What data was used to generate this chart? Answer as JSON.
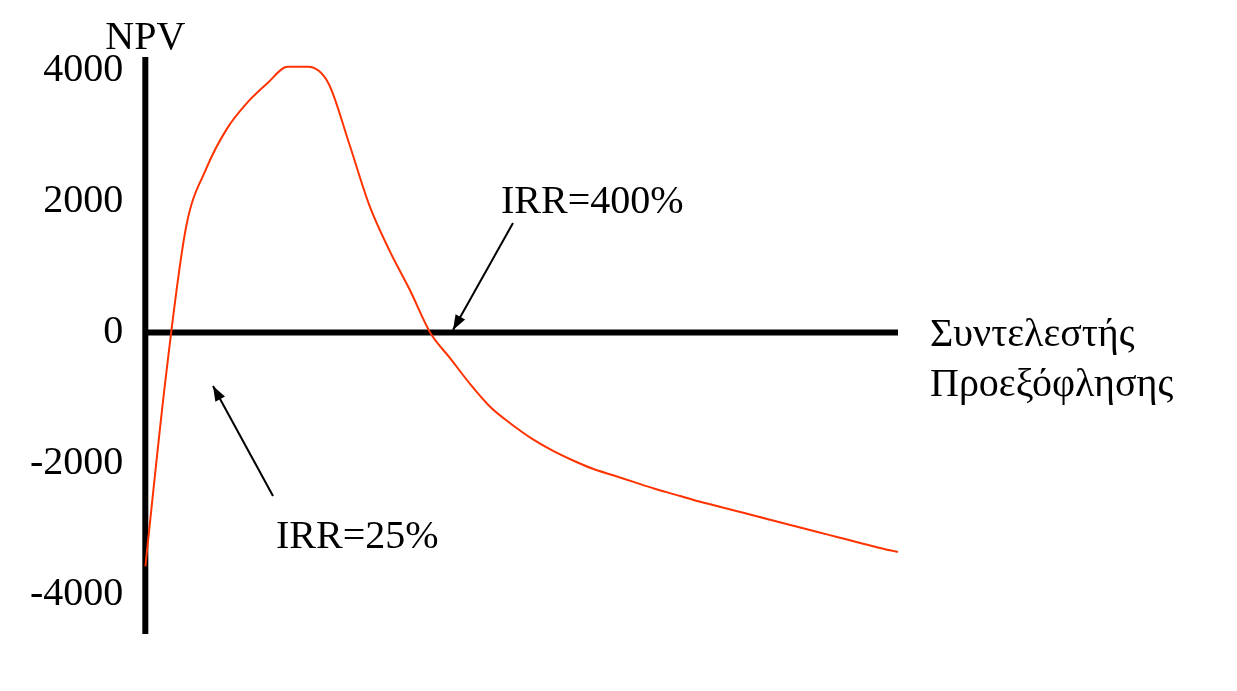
{
  "chart_data": {
    "type": "line",
    "ylabel": "NPV",
    "xlabel": "Συντελεστής Προεξόφλησης",
    "categories": [
      null,
      null,
      null,
      null,
      null,
      null,
      null,
      null,
      null,
      null,
      null,
      null,
      null,
      null,
      null,
      null,
      null,
      null,
      null,
      null,
      null,
      null,
      null,
      null,
      null,
      null,
      null,
      null,
      null,
      null,
      null,
      null,
      null,
      null,
      null,
      null,
      null,
      null
    ],
    "series": [
      {
        "color": "#ff3300",
        "values": [
          -3570,
          -700,
          1600,
          2500,
          3100,
          3500,
          3800,
          4050,
          4050,
          3800,
          2900,
          1950,
          1250,
          650,
          0,
          -400,
          -800,
          -1150,
          -1400,
          -1620,
          -1800,
          -1950,
          -2080,
          -2180,
          -2280,
          -2380,
          -2470,
          -2560,
          -2640,
          -2720,
          -2800,
          -2880,
          -2960,
          -3040,
          -3120,
          -3200,
          -3280,
          -3350
        ]
      }
    ],
    "ylim": [
      -4600,
      4200
    ],
    "yticks": [
      -4000,
      -2000,
      0,
      2000,
      4000
    ],
    "annotations": [
      "IRR=400%",
      "IRR=25%"
    ],
    "ref_lines": [
      {
        "axis": "y",
        "value": 0,
        "color": "#000000",
        "line_style": "solid"
      }
    ],
    "grid": false,
    "legend": false,
    "marker": "none",
    "line_style": "solid",
    "tick_labels": "y"
  }
}
